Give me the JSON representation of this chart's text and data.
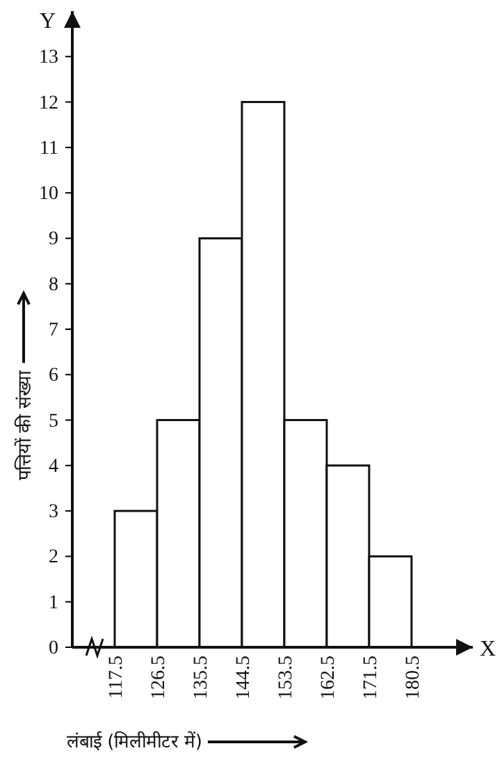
{
  "chart_data": {
    "type": "histogram",
    "xlabel": "लंबाई (मिलीमीटर में)",
    "ylabel": "पत्तियों की संख्या",
    "bins": [
      117.5,
      126.5,
      135.5,
      144.5,
      153.5,
      162.5,
      171.5,
      180.5
    ],
    "values": [
      3,
      5,
      9,
      12,
      5,
      4,
      2
    ],
    "color": "#ffffff",
    "xlim": [
      108.5,
      193.5
    ],
    "xticks": [
      117.5,
      126.5,
      135.5,
      144.5,
      153.5,
      162.5,
      171.5,
      180.5
    ],
    "ylim": [
      0,
      14
    ],
    "yticks": [
      0,
      1,
      2,
      3,
      4,
      5,
      6,
      7,
      8,
      9,
      10,
      11,
      12,
      13
    ],
    "grid": false,
    "annotations": [
      "Y",
      "X"
    ]
  }
}
